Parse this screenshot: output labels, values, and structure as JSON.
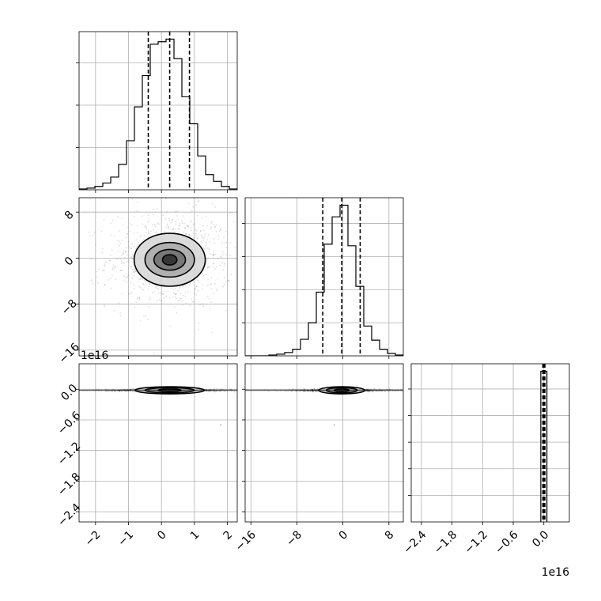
{
  "chart_data": {
    "type": "corner",
    "grid": true,
    "colors": {
      "hist": "#000000",
      "grid": "#b0b0b0",
      "quantile": "#000000",
      "scatter": "#000000"
    },
    "params": [
      {
        "range": [
          -2.5,
          2.3
        ],
        "ticks": [
          -2,
          -1,
          0,
          1,
          2
        ],
        "tick_labels": [
          "−2",
          "−1",
          "0",
          "1",
          "2"
        ],
        "quantiles": [
          -0.4,
          0.25,
          0.85
        ],
        "offset": ""
      },
      {
        "range": [
          -17,
          10.5
        ],
        "ticks": [
          -16,
          -8,
          0,
          8
        ],
        "tick_labels": [
          "−16",
          "−8",
          "0",
          "8"
        ],
        "quantiles": [
          -3.5,
          -0.2,
          3.0
        ],
        "offset": ""
      },
      {
        "range": [
          -2.6,
          0.5
        ],
        "ticks": [
          -2.4,
          -1.8,
          -1.2,
          -0.6,
          0.0
        ],
        "tick_labels": [
          "−2.4",
          "−1.8",
          "−1.2",
          "−0.6",
          "0.0"
        ],
        "quantiles": [
          -0.02,
          0.0,
          0.02
        ],
        "offset": "1e16"
      }
    ],
    "hist_0": {
      "edges": [
        -2.5,
        -2.26,
        -2.02,
        -1.78,
        -1.54,
        -1.3,
        -1.06,
        -0.82,
        -0.58,
        -0.34,
        -0.1,
        0.14,
        0.38,
        0.62,
        0.86,
        1.1,
        1.34,
        1.58,
        1.82,
        2.06,
        2.3
      ],
      "counts": [
        1,
        2,
        4,
        8,
        15,
        30,
        58,
        98,
        135,
        172,
        175,
        178,
        155,
        110,
        78,
        40,
        18,
        10,
        4,
        1
      ]
    },
    "hist_1": {
      "edges": [
        -17,
        -15.625,
        -14.25,
        -12.875,
        -11.5,
        -10.125,
        -8.75,
        -7.375,
        -6.0,
        -4.625,
        -3.25,
        -1.875,
        -0.5,
        0.875,
        2.25,
        3.625,
        5.0,
        6.375,
        7.75,
        9.125,
        10.5
      ],
      "counts": [
        0,
        0,
        0,
        1,
        2,
        4,
        8,
        20,
        40,
        77,
        135,
        168,
        182,
        133,
        84,
        36,
        19,
        8,
        3,
        1
      ]
    },
    "hist_2": {
      "edges": [
        -0.06,
        0.0,
        0.06
      ],
      "counts": [
        170,
        170
      ]
    },
    "pairs": [
      {
        "row": 1,
        "col": 0,
        "center": [
          0.25,
          -0.3
        ],
        "scatter_spread": [
          0.95,
          4.2
        ],
        "contours": [
          [
            0.22,
            0.9
          ],
          [
            0.48,
            1.8
          ],
          [
            0.75,
            3.0
          ],
          [
            1.08,
            4.6
          ]
        ],
        "shading": [
          [
            "#2a2a2a",
            0.22,
            0.9
          ],
          [
            "#6e6e6e",
            0.48,
            1.8
          ],
          [
            "#a8a8a8",
            0.75,
            3.0
          ],
          [
            "#d6d6d6",
            1.08,
            4.6
          ]
        ]
      },
      {
        "row": 2,
        "col": 0,
        "center": [
          0.25,
          -0.02
        ],
        "scatter_spread": [
          0.95,
          0.012
        ],
        "contours": [
          [
            0.35,
            0.025
          ],
          [
            0.75,
            0.05
          ],
          [
            1.05,
            0.07
          ]
        ],
        "shading": [
          [
            "#555555",
            0.35,
            0.025
          ],
          [
            "#a0a0a0",
            0.75,
            0.05
          ],
          [
            "#d8d8d8",
            1.05,
            0.07
          ]
        ]
      },
      {
        "row": 2,
        "col": 1,
        "center": [
          -0.2,
          -0.02
        ],
        "scatter_spread": [
          4.2,
          0.012
        ],
        "contours": [
          [
            1.3,
            0.025
          ],
          [
            2.7,
            0.05
          ],
          [
            4.0,
            0.07
          ]
        ],
        "shading": [
          [
            "#555555",
            1.3,
            0.025
          ],
          [
            "#a0a0a0",
            2.7,
            0.05
          ],
          [
            "#d8d8d8",
            4.0,
            0.07
          ]
        ]
      }
    ],
    "outliers": [
      {
        "row": 2,
        "col": 0,
        "x": 1.8,
        "y": -0.7
      },
      {
        "row": 2,
        "col": 1,
        "x": -1.5,
        "y": -0.7
      }
    ]
  }
}
